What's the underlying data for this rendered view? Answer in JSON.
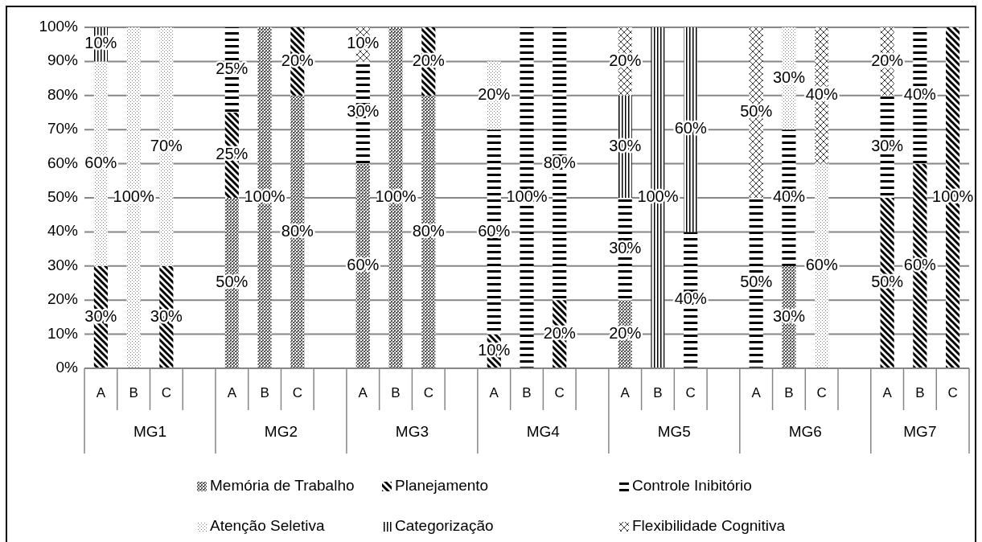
{
  "chart_data": {
    "type": "bar",
    "stacked": true,
    "categories": [
      "A",
      "B",
      "C",
      null,
      "A",
      "B",
      "C",
      null,
      "A",
      "B",
      "C",
      null,
      "A",
      "B",
      "C",
      null,
      "A",
      "B",
      "C",
      null,
      "A",
      "B",
      "C",
      null,
      "A",
      "B",
      "C"
    ],
    "annotations": [
      "MG1",
      "MG2",
      "MG3",
      "MG4",
      "MG5",
      "MG6",
      "MG7"
    ],
    "ylim": [
      0,
      100
    ],
    "yticks": [
      {
        "value": 0,
        "label": "0%"
      },
      {
        "value": 10,
        "label": "10%"
      },
      {
        "value": 20,
        "label": "20%"
      },
      {
        "value": 30,
        "label": "30%"
      },
      {
        "value": 40,
        "label": "40%"
      },
      {
        "value": 50,
        "label": "50%"
      },
      {
        "value": 60,
        "label": "60%"
      },
      {
        "value": 70,
        "label": "70%"
      },
      {
        "value": 80,
        "label": "80%"
      },
      {
        "value": 90,
        "label": "90%"
      },
      {
        "value": 100,
        "label": "100%"
      }
    ],
    "grid": "y",
    "legend": "bottom",
    "series": [
      {
        "name": "Memória de Trabalho",
        "color": "#595959",
        "values": [
          null,
          null,
          null,
          null,
          50,
          100,
          80,
          null,
          60,
          100,
          80,
          null,
          null,
          null,
          null,
          null,
          20,
          null,
          null,
          null,
          null,
          30,
          null,
          null,
          null,
          null,
          null
        ],
        "value_labels": [
          null,
          null,
          null,
          null,
          "50%",
          "100%",
          "80%",
          null,
          "60%",
          "100%",
          "80%",
          null,
          null,
          null,
          null,
          null,
          "20%",
          null,
          null,
          null,
          null,
          "30%",
          null,
          null,
          null,
          null,
          null
        ]
      },
      {
        "name": "Planejamento",
        "color": "#000000",
        "values": [
          30,
          null,
          30,
          null,
          25,
          null,
          20,
          null,
          null,
          null,
          20,
          null,
          10,
          null,
          20,
          null,
          null,
          null,
          null,
          null,
          null,
          null,
          null,
          null,
          50,
          60,
          100
        ],
        "value_labels": [
          "30%",
          null,
          "30%",
          null,
          "25%",
          null,
          "20%",
          null,
          null,
          null,
          "20%",
          null,
          "10%",
          null,
          "20%",
          null,
          null,
          null,
          null,
          null,
          null,
          null,
          null,
          null,
          "50%",
          "60%",
          "100%"
        ]
      },
      {
        "name": "Controle Inibitório",
        "color": "#000000",
        "values": [
          null,
          null,
          null,
          null,
          25,
          null,
          null,
          null,
          30,
          null,
          null,
          null,
          60,
          100,
          80,
          null,
          30,
          null,
          40,
          null,
          50,
          40,
          null,
          null,
          30,
          40,
          null
        ],
        "value_labels": [
          null,
          null,
          null,
          null,
          "25%",
          null,
          null,
          null,
          "30%",
          null,
          null,
          null,
          "60%",
          "100%",
          "80%",
          null,
          "30%",
          null,
          "40%",
          null,
          "50%",
          "40%",
          null,
          null,
          "30%",
          "40%",
          null
        ]
      },
      {
        "name": "Atenção Seletiva",
        "color": "#7f7f7f",
        "values": [
          60,
          100,
          70,
          null,
          null,
          null,
          null,
          null,
          null,
          null,
          null,
          null,
          20,
          null,
          null,
          null,
          null,
          null,
          null,
          null,
          null,
          30,
          60,
          null,
          null,
          null,
          null
        ],
        "value_labels": [
          "60%",
          "100%",
          "70%",
          null,
          null,
          null,
          null,
          null,
          null,
          null,
          null,
          null,
          "20%",
          null,
          null,
          null,
          null,
          null,
          null,
          null,
          null,
          "30%",
          "60%",
          null,
          null,
          null,
          null
        ]
      },
      {
        "name": "Categorização",
        "color": "#000000",
        "values": [
          10,
          null,
          null,
          null,
          null,
          null,
          null,
          null,
          null,
          null,
          null,
          null,
          null,
          null,
          null,
          null,
          30,
          100,
          60,
          null,
          null,
          null,
          null,
          null,
          null,
          null,
          null
        ],
        "value_labels": [
          "10%",
          null,
          null,
          null,
          null,
          null,
          null,
          null,
          null,
          null,
          null,
          null,
          null,
          null,
          null,
          null,
          "30%",
          "100%",
          "60%",
          null,
          null,
          null,
          null,
          null,
          null,
          null,
          null
        ]
      },
      {
        "name": "Flexibilidade Cognitiva",
        "color": "#404040",
        "values": [
          null,
          null,
          null,
          null,
          null,
          null,
          null,
          null,
          10,
          null,
          null,
          null,
          null,
          null,
          null,
          null,
          20,
          null,
          null,
          null,
          50,
          null,
          40,
          null,
          20,
          null,
          null
        ],
        "value_labels": [
          null,
          null,
          null,
          null,
          null,
          null,
          null,
          null,
          "10%",
          null,
          null,
          null,
          null,
          null,
          null,
          null,
          "20%",
          null,
          null,
          null,
          "50%",
          null,
          "40%",
          null,
          "20%",
          null,
          null
        ]
      }
    ]
  }
}
